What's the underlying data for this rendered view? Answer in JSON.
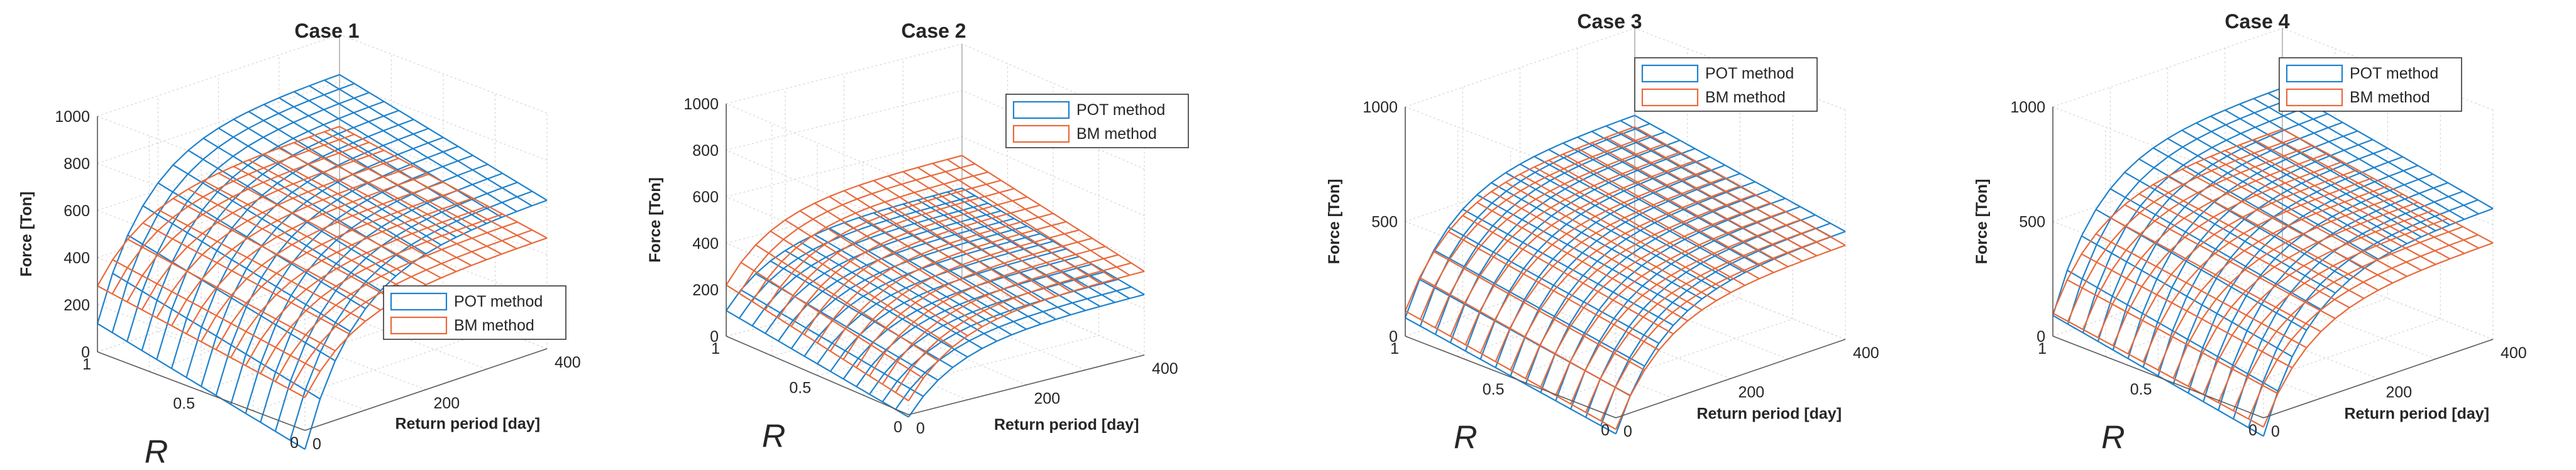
{
  "colors": {
    "pot": "#1f82cc",
    "bm": "#e86a3c",
    "axis": "#262626",
    "grid": "#d4d4d4"
  },
  "chart_data": [
    {
      "type": "surface",
      "title": "Case  1",
      "xlabel": "Return period [day]",
      "ylabel": "R",
      "zlabel": "Force [Ton]",
      "xlim": [
        0,
        400
      ],
      "ylim": [
        0,
        1
      ],
      "zlim": [
        0,
        1000
      ],
      "x_ticks": [
        "0",
        "200",
        "400"
      ],
      "y_ticks": [
        "0",
        "0.5",
        "1"
      ],
      "z_ticks": [
        "0",
        "200",
        "400",
        "600",
        "800",
        "1000"
      ],
      "legend": [
        "POT method",
        "BM method"
      ],
      "legend_position": "bottom-right",
      "series": [
        {
          "name": "POT method",
          "z_min": 120,
          "z_rp_max": 830,
          "r_gain": 200
        },
        {
          "name": "BM method",
          "z_min": 280,
          "z_rp_max": 610,
          "r_gain": 140
        }
      ]
    },
    {
      "type": "surface",
      "title": "Case  2",
      "xlabel": "Return period [day]",
      "ylabel": "R",
      "zlabel": "Force [Ton]",
      "xlim": [
        0,
        400
      ],
      "ylim": [
        0,
        1
      ],
      "zlim": [
        0,
        1000
      ],
      "x_ticks": [
        "0",
        "200",
        "400"
      ],
      "y_ticks": [
        "0",
        "0.5",
        "1"
      ],
      "z_ticks": [
        "0",
        "200",
        "400",
        "600",
        "800",
        "1000"
      ],
      "legend": [
        "POT method",
        "BM method"
      ],
      "legend_position": "top-right",
      "series": [
        {
          "name": "POT method",
          "z_min": 110,
          "z_rp_max": 380,
          "r_gain": 120
        },
        {
          "name": "BM method",
          "z_min": 220,
          "z_rp_max": 520,
          "r_gain": 160
        }
      ]
    },
    {
      "type": "surface",
      "title": "Case  3",
      "xlabel": "Return period [day]",
      "ylabel": "R",
      "zlabel": "Force [Ton]",
      "xlim": [
        0,
        400
      ],
      "ylim": [
        0,
        1
      ],
      "zlim": [
        0,
        1000
      ],
      "x_ticks": [
        "0",
        "200",
        "400"
      ],
      "y_ticks": [
        "0",
        "0.5",
        "1"
      ],
      "z_ticks": [
        "0",
        "500",
        "1000"
      ],
      "legend": [
        "POT method",
        "BM method"
      ],
      "legend_position": "top",
      "series": [
        {
          "name": "POT method",
          "z_min": 80,
          "z_rp_max": 620,
          "r_gain": 150
        },
        {
          "name": "BM method",
          "z_min": 110,
          "z_rp_max": 570,
          "r_gain": 160
        }
      ]
    },
    {
      "type": "surface",
      "title": "Case  4",
      "xlabel": "Return period [day]",
      "ylabel": "R",
      "zlabel": "Force [Ton]",
      "xlim": [
        0,
        400
      ],
      "ylim": [
        0,
        1
      ],
      "zlim": [
        0,
        1000
      ],
      "x_ticks": [
        "0",
        "200",
        "400"
      ],
      "y_ticks": [
        "0",
        "0.5",
        "1"
      ],
      "z_ticks": [
        "0",
        "500",
        "1000"
      ],
      "legend": [
        "POT method",
        "BM method"
      ],
      "legend_position": "top",
      "series": [
        {
          "name": "POT method",
          "z_min": 90,
          "z_rp_max": 740,
          "r_gain": 170
        },
        {
          "name": "BM method",
          "z_min": 100,
          "z_rp_max": 560,
          "r_gain": 140
        }
      ]
    }
  ]
}
